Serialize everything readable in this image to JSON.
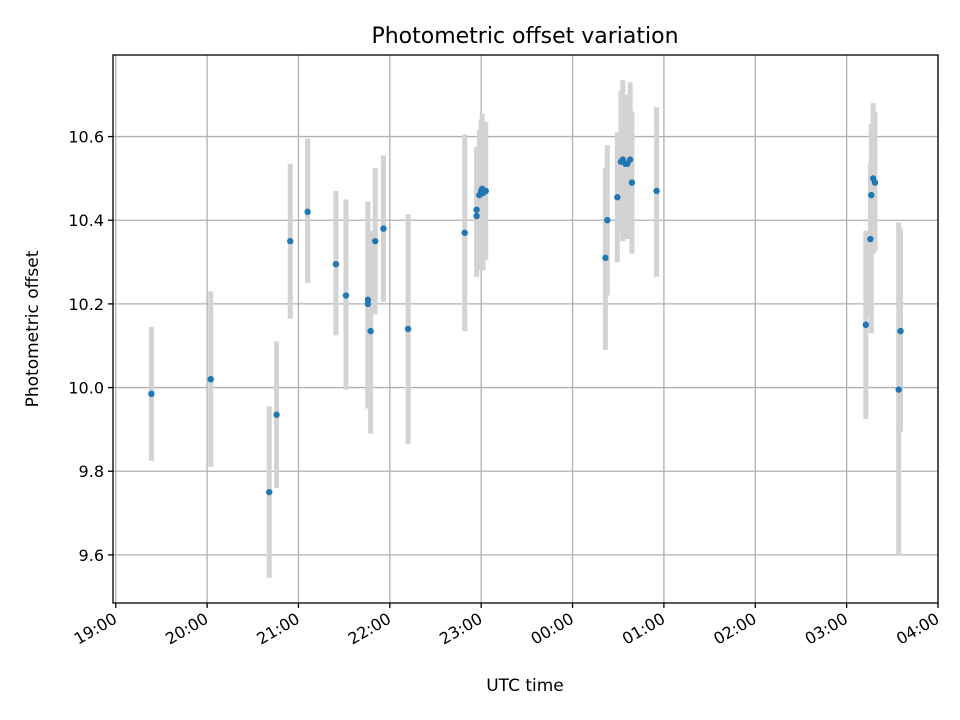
{
  "chart_data": {
    "type": "scatter",
    "title": "Photometric offset variation",
    "xlabel": "UTC time",
    "ylabel": "Photometric offset",
    "x_axis": {
      "range_hours": [
        18.97,
        28.0
      ],
      "ticks": [
        {
          "value": 19,
          "label": "19:00"
        },
        {
          "value": 20,
          "label": "20:00"
        },
        {
          "value": 21,
          "label": "21:00"
        },
        {
          "value": 22,
          "label": "22:00"
        },
        {
          "value": 23,
          "label": "23:00"
        },
        {
          "value": 24,
          "label": "00:00"
        },
        {
          "value": 25,
          "label": "01:00"
        },
        {
          "value": 26,
          "label": "02:00"
        },
        {
          "value": 27,
          "label": "03:00"
        },
        {
          "value": 28,
          "label": "04:00"
        }
      ]
    },
    "y_axis": {
      "range": [
        9.485,
        10.795
      ],
      "ticks": [
        {
          "value": 9.6,
          "label": "9.6"
        },
        {
          "value": 9.8,
          "label": "9.8"
        },
        {
          "value": 10.0,
          "label": "10.0"
        },
        {
          "value": 10.2,
          "label": "10.2"
        },
        {
          "value": 10.4,
          "label": "10.4"
        },
        {
          "value": 10.6,
          "label": "10.6"
        }
      ]
    },
    "grid": true,
    "colors": {
      "point": "#1f77b4",
      "errorbar": "#d3d3d3"
    },
    "points": [
      {
        "t": 19.39,
        "y": 9.985,
        "lo": 9.825,
        "hi": 10.145
      },
      {
        "t": 20.04,
        "y": 10.02,
        "lo": 9.81,
        "hi": 10.23
      },
      {
        "t": 20.68,
        "y": 9.75,
        "lo": 9.545,
        "hi": 9.955
      },
      {
        "t": 20.76,
        "y": 9.935,
        "lo": 9.76,
        "hi": 10.11
      },
      {
        "t": 20.91,
        "y": 10.35,
        "lo": 10.165,
        "hi": 10.535
      },
      {
        "t": 21.1,
        "y": 10.42,
        "lo": 10.25,
        "hi": 10.595
      },
      {
        "t": 21.41,
        "y": 10.295,
        "lo": 10.125,
        "hi": 10.47
      },
      {
        "t": 21.52,
        "y": 10.22,
        "lo": 9.995,
        "hi": 10.45
      },
      {
        "t": 21.76,
        "y": 10.21,
        "lo": 9.955,
        "hi": 10.445
      },
      {
        "t": 21.76,
        "y": 10.2,
        "lo": 9.95,
        "hi": 10.44
      },
      {
        "t": 21.79,
        "y": 10.135,
        "lo": 9.89,
        "hi": 10.375
      },
      {
        "t": 21.84,
        "y": 10.35,
        "lo": 10.175,
        "hi": 10.525
      },
      {
        "t": 21.93,
        "y": 10.38,
        "lo": 10.205,
        "hi": 10.555
      },
      {
        "t": 22.2,
        "y": 10.14,
        "lo": 9.865,
        "hi": 10.415
      },
      {
        "t": 22.82,
        "y": 10.37,
        "lo": 10.135,
        "hi": 10.605
      },
      {
        "t": 22.95,
        "y": 10.41,
        "lo": 10.265,
        "hi": 10.575
      },
      {
        "t": 22.95,
        "y": 10.425,
        "lo": 10.29,
        "hi": 10.57
      },
      {
        "t": 22.98,
        "y": 10.46,
        "lo": 10.28,
        "hi": 10.615
      },
      {
        "t": 23.0,
        "y": 10.47,
        "lo": 10.29,
        "hi": 10.64
      },
      {
        "t": 23.01,
        "y": 10.475,
        "lo": 10.3,
        "hi": 10.655
      },
      {
        "t": 23.02,
        "y": 10.465,
        "lo": 10.28,
        "hi": 10.635
      },
      {
        "t": 23.05,
        "y": 10.47,
        "lo": 10.305,
        "hi": 10.635
      },
      {
        "t": 24.36,
        "y": 10.31,
        "lo": 10.09,
        "hi": 10.525
      },
      {
        "t": 24.38,
        "y": 10.4,
        "lo": 10.22,
        "hi": 10.58
      },
      {
        "t": 24.49,
        "y": 10.455,
        "lo": 10.3,
        "hi": 10.61
      },
      {
        "t": 24.53,
        "y": 10.54,
        "lo": 10.37,
        "hi": 10.71
      },
      {
        "t": 24.55,
        "y": 10.545,
        "lo": 10.35,
        "hi": 10.735
      },
      {
        "t": 24.58,
        "y": 10.535,
        "lo": 10.37,
        "hi": 10.7
      },
      {
        "t": 24.6,
        "y": 10.535,
        "lo": 10.355,
        "hi": 10.69
      },
      {
        "t": 24.63,
        "y": 10.545,
        "lo": 10.39,
        "hi": 10.73
      },
      {
        "t": 24.65,
        "y": 10.49,
        "lo": 10.32,
        "hi": 10.66
      },
      {
        "t": 24.92,
        "y": 10.47,
        "lo": 10.265,
        "hi": 10.67
      },
      {
        "t": 27.21,
        "y": 10.15,
        "lo": 9.925,
        "hi": 10.375
      },
      {
        "t": 27.26,
        "y": 10.355,
        "lo": 10.175,
        "hi": 10.535
      },
      {
        "t": 27.27,
        "y": 10.46,
        "lo": 10.13,
        "hi": 10.63
      },
      {
        "t": 27.29,
        "y": 10.5,
        "lo": 10.32,
        "hi": 10.68
      },
      {
        "t": 27.31,
        "y": 10.49,
        "lo": 10.325,
        "hi": 10.66
      },
      {
        "t": 27.57,
        "y": 9.995,
        "lo": 9.6,
        "hi": 10.395
      },
      {
        "t": 27.59,
        "y": 10.135,
        "lo": 9.895,
        "hi": 10.38
      }
    ]
  }
}
